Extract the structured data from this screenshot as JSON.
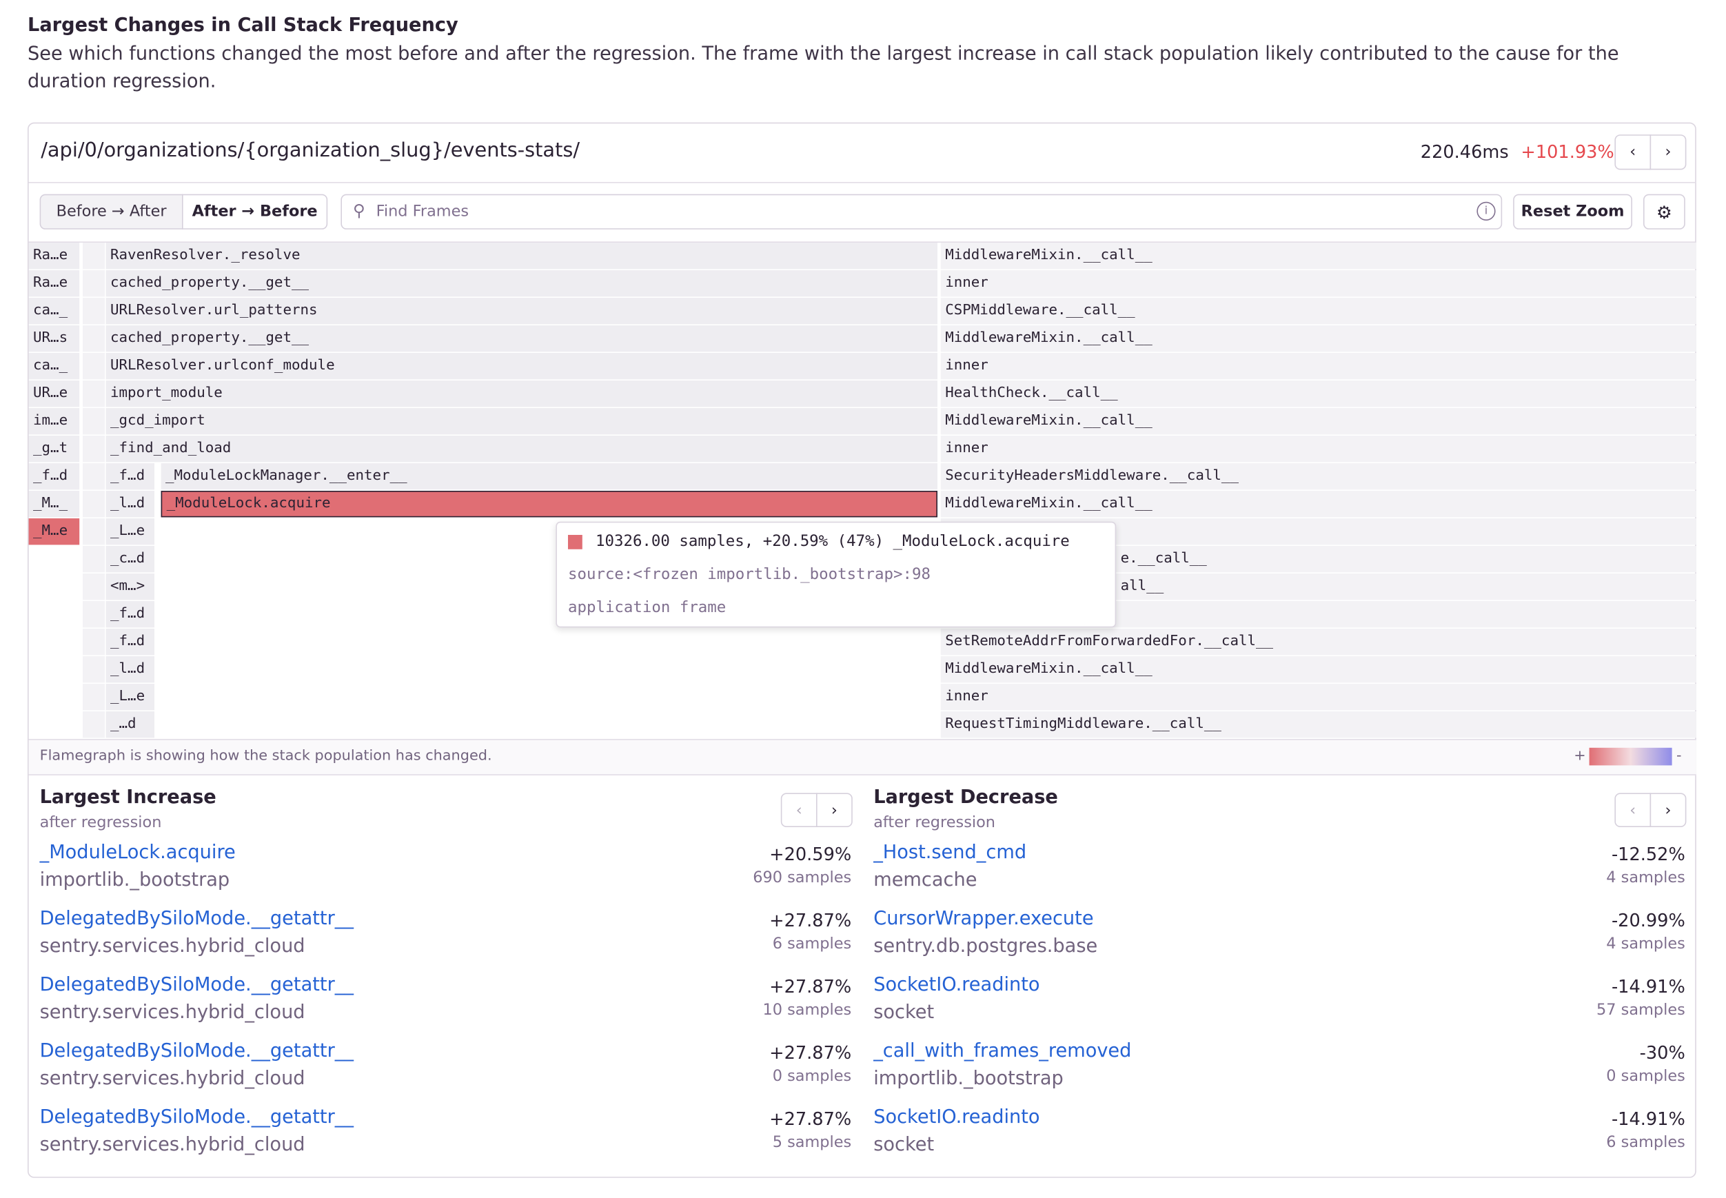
{
  "header": {
    "title": "Largest Changes in Call Stack Frequency",
    "description": "See which functions changed the most before and after the regression. The frame with the largest increase in call stack population likely contributed to the cause for the duration regression."
  },
  "panel": {
    "endpoint": "/api/0/organizations/{organization_slug}/events-stats/",
    "duration": "220.46ms",
    "change": "+101.93%"
  },
  "toolbar": {
    "tabs": [
      "Before → After",
      "After → Before"
    ],
    "search_placeholder": "Find Frames",
    "reset_zoom": "Reset Zoom"
  },
  "flamegraph": {
    "column_1": [
      "Ra…e",
      "Ra…e",
      "ca…_",
      "UR…s",
      "ca…_",
      "UR…e",
      "im…e",
      "_g…t",
      "_f…d",
      "_M…_",
      "_M…e"
    ],
    "column_2": [
      "RavenResolver._resolve",
      "cached_property.__get__",
      "URLResolver.url_patterns",
      "cached_property.__get__",
      "URLResolver.urlconf_module",
      "import_module",
      "_gcd_import",
      "_find_and_load",
      "_f…d",
      "_l…d",
      "_L…e",
      "_c…d",
      "<m…>",
      "_f…d",
      "_f…d",
      "_l…d",
      "_L…e",
      "_…d"
    ],
    "column_3": [
      "_ModuleLockManager.__enter__",
      "_ModuleLock.acquire"
    ],
    "column_4": [
      "MiddlewareMixin.__call__",
      "inner",
      "CSPMiddleware.__call__",
      "MiddlewareMixin.__call__",
      "inner",
      "HealthCheck.__call__",
      "MiddlewareMixin.__call__",
      "inner",
      "SecurityHeadersMiddleware.__call__",
      "MiddlewareMixin.__call__",
      "e.__call__",
      "all__",
      "SetRemoteAddrFromForwardedFor.__call__",
      "MiddlewareMixin.__call__",
      "inner",
      "RequestTimingMiddleware.__call__"
    ],
    "tooltip": {
      "summary": "10326.00 samples, +20.59% (47%) _ModuleLock.acquire",
      "source": "source:<frozen importlib._bootstrap>:98",
      "kind": "application frame"
    },
    "footer": "Flamegraph is showing how the stack population has changed.",
    "legend": [
      "+",
      "-"
    ]
  },
  "lists": [
    {
      "title": "Largest Increase",
      "subtitle": "after regression",
      "items": [
        {
          "function": "_ModuleLock.acquire",
          "package": "importlib._bootstrap",
          "change": "+20.59%",
          "samples": "690 samples"
        },
        {
          "function": "DelegatedBySiloMode.__getattr__",
          "package": "sentry.services.hybrid_cloud",
          "change": "+27.87%",
          "samples": "6 samples"
        },
        {
          "function": "DelegatedBySiloMode.__getattr__",
          "package": "sentry.services.hybrid_cloud",
          "change": "+27.87%",
          "samples": "10 samples"
        },
        {
          "function": "DelegatedBySiloMode.__getattr__",
          "package": "sentry.services.hybrid_cloud",
          "change": "+27.87%",
          "samples": "0 samples"
        },
        {
          "function": "DelegatedBySiloMode.__getattr__",
          "package": "sentry.services.hybrid_cloud",
          "change": "+27.87%",
          "samples": "5 samples"
        }
      ]
    },
    {
      "title": "Largest Decrease",
      "subtitle": "after regression",
      "items": [
        {
          "function": "_Host.send_cmd",
          "package": "memcache",
          "change": "-12.52%",
          "samples": "4 samples"
        },
        {
          "function": "CursorWrapper.execute",
          "package": "sentry.db.postgres.base",
          "change": "-20.99%",
          "samples": "4 samples"
        },
        {
          "function": "SocketIO.readinto",
          "package": "socket",
          "change": "-14.91%",
          "samples": "57 samples"
        },
        {
          "function": "_call_with_frames_removed",
          "package": "importlib._bootstrap",
          "change": "-30%",
          "samples": "0 samples"
        },
        {
          "function": "SocketIO.readinto",
          "package": "socket",
          "change": "-14.91%",
          "samples": "6 samples"
        }
      ]
    }
  ]
}
